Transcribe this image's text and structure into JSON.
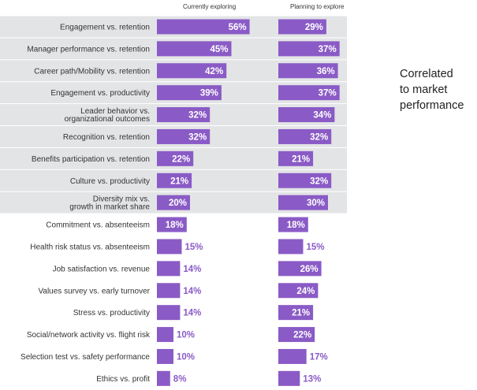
{
  "chart_data": {
    "type": "bar",
    "orientation": "horizontal",
    "series": [
      {
        "name": "Currently exploring",
        "values": [
          56,
          45,
          42,
          39,
          32,
          32,
          22,
          21,
          20,
          18,
          15,
          14,
          14,
          14,
          10,
          10,
          8
        ]
      },
      {
        "name": "Planning to explore",
        "values": [
          29,
          37,
          36,
          37,
          34,
          32,
          21,
          32,
          30,
          18,
          15,
          26,
          24,
          21,
          22,
          17,
          13
        ]
      }
    ],
    "categories": [
      [
        "Engagement vs. retention"
      ],
      [
        "Manager performance vs. retention"
      ],
      [
        "Career path/Mobility vs. retention"
      ],
      [
        "Engagement vs. productivity"
      ],
      [
        "Leader behavior vs.",
        "organizational outcomes"
      ],
      [
        "Recognition vs. retention"
      ],
      [
        "Benefits participation vs. retention"
      ],
      [
        "Culture vs. productivity"
      ],
      [
        "Diversity mix vs.",
        "growth in market share"
      ],
      [
        "Commitment vs. absenteeism"
      ],
      [
        "Health risk status vs. absenteeism"
      ],
      [
        "Job satisfaction vs. revenue"
      ],
      [
        "Values survey vs. early turnover"
      ],
      [
        "Stress vs. productivity"
      ],
      [
        "Social/network activity vs. flight risk"
      ],
      [
        "Selection test vs. safety performance"
      ],
      [
        "Ethics vs. profit"
      ]
    ],
    "value_suffix": "%",
    "shaded_rows": [
      0,
      1,
      2,
      3,
      4,
      5,
      6,
      7,
      8
    ],
    "bracketed_rows": [
      1,
      3,
      5,
      6
    ],
    "annotation": [
      "Correlated",
      "to market",
      "performance"
    ],
    "colors": {
      "bar": "#8a5bc6",
      "band": "#e3e4e6",
      "label_inside": "#ffffff",
      "label_outside": "#8a5bc6",
      "bracket": "#ffffff"
    }
  }
}
